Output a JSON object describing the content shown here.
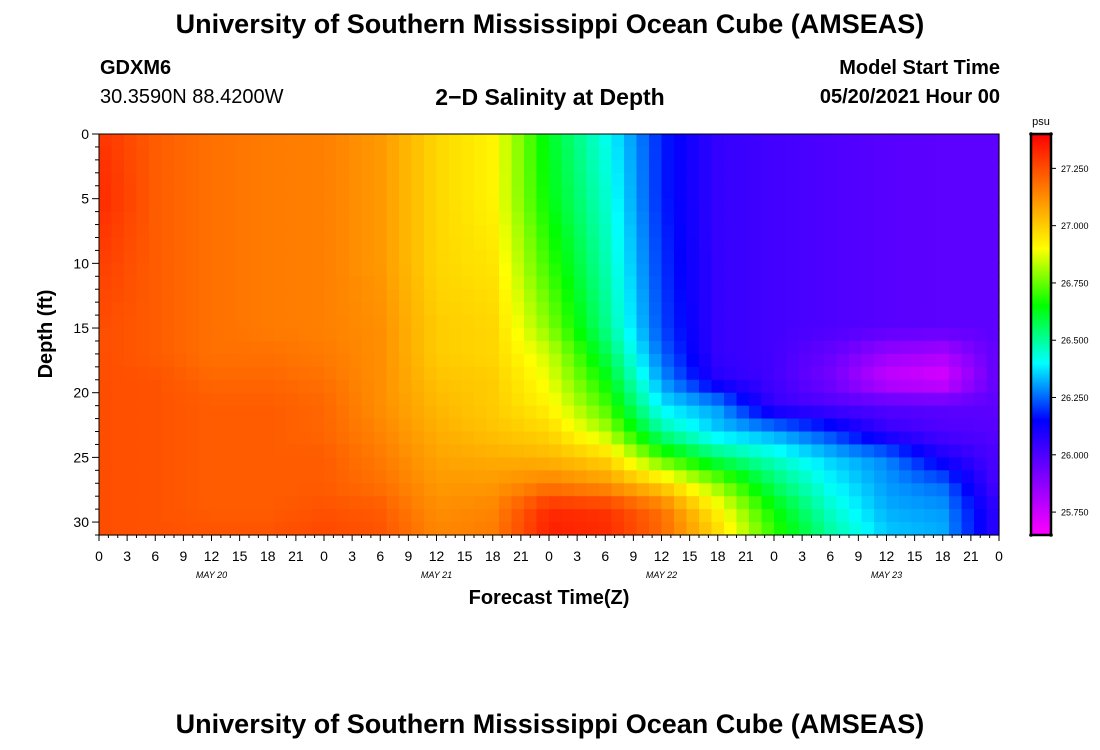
{
  "header": {
    "title": "University of Southern Mississippi Ocean Cube (AMSEAS)",
    "station": "GDXM6",
    "coords": "30.3590N  88.4200W",
    "subtitle": "2−D Salinity at Depth",
    "model_start_label": "Model Start Time",
    "model_start_value": "05/20/2021 Hour 00"
  },
  "footer": {
    "title": "University of Southern Mississippi Ocean Cube (AMSEAS)"
  },
  "chart_data": {
    "type": "heatmap",
    "title": "2-D Salinity at Depth",
    "xlabel": "Forecast Time(Z)",
    "ylabel": "Depth (ft)",
    "x_tick_labels": [
      "0",
      "3",
      "6",
      "9",
      "12",
      "15",
      "18",
      "21",
      "0",
      "3",
      "6",
      "9",
      "12",
      "15",
      "18",
      "21",
      "0",
      "3",
      "6",
      "9",
      "12",
      "15",
      "18",
      "21",
      "0",
      "3",
      "6",
      "9",
      "12",
      "15",
      "18",
      "21",
      "0"
    ],
    "day_labels": [
      "MAY 20",
      "MAY 21",
      "MAY 22",
      "MAY 23"
    ],
    "xlim_hours": [
      0,
      96
    ],
    "ylim": [
      0,
      31
    ],
    "y_ticks": [
      0,
      5,
      10,
      15,
      20,
      25,
      30
    ],
    "colorbar": {
      "unit": "psu",
      "range": [
        25.65,
        27.4
      ],
      "ticks": [
        27.25,
        27.0,
        26.75,
        26.5,
        26.25,
        26.0,
        25.75
      ],
      "tick_labels": [
        "27.250",
        "27.000",
        "26.750",
        "26.500",
        "26.250",
        "26.000",
        "25.750"
      ],
      "colors": [
        "#ff00ff",
        "#8000ff",
        "#0000ff",
        "#00ffff",
        "#00ff00",
        "#ffff00",
        "#ff8000",
        "#ff0000"
      ]
    },
    "grid": false,
    "depth_levels_ft": [
      0,
      5,
      10,
      15,
      17,
      19,
      21,
      23,
      25,
      27,
      29,
      31
    ],
    "time_hours": [
      0,
      6,
      12,
      18,
      24,
      30,
      36,
      42,
      48,
      54,
      60,
      66,
      72,
      78,
      84,
      90,
      96
    ],
    "salinity_psu": [
      [
        27.3,
        27.22,
        27.18,
        27.16,
        27.15,
        27.1,
        26.98,
        26.92,
        26.62,
        26.42,
        26.18,
        26.05,
        26.02,
        26.0,
        25.98,
        25.97,
        25.97
      ],
      [
        27.32,
        27.22,
        27.18,
        27.16,
        27.15,
        27.1,
        26.98,
        26.92,
        26.64,
        26.45,
        26.18,
        26.05,
        26.02,
        26.0,
        25.98,
        25.97,
        25.97
      ],
      [
        27.28,
        27.22,
        27.18,
        27.16,
        27.15,
        27.1,
        26.98,
        26.95,
        26.7,
        26.48,
        26.2,
        26.05,
        26.02,
        26.0,
        25.98,
        25.97,
        25.97
      ],
      [
        27.25,
        27.22,
        27.18,
        27.16,
        27.15,
        27.12,
        27.0,
        26.98,
        26.78,
        26.52,
        26.22,
        26.05,
        26.02,
        26.0,
        25.98,
        25.97,
        25.97
      ],
      [
        27.25,
        27.22,
        27.18,
        27.18,
        27.16,
        27.12,
        27.0,
        26.98,
        26.85,
        26.58,
        26.25,
        26.05,
        26.02,
        25.95,
        25.85,
        25.82,
        25.97
      ],
      [
        27.25,
        27.24,
        27.2,
        27.2,
        27.18,
        27.12,
        27.02,
        27.0,
        26.88,
        26.65,
        26.3,
        26.08,
        26.02,
        25.92,
        25.76,
        25.72,
        25.97
      ],
      [
        27.25,
        27.24,
        27.22,
        27.22,
        27.2,
        27.12,
        27.04,
        27.0,
        26.92,
        26.72,
        26.38,
        26.3,
        26.05,
        26.0,
        25.98,
        25.97,
        25.97
      ],
      [
        27.25,
        27.24,
        27.22,
        27.22,
        27.2,
        27.14,
        27.06,
        27.02,
        26.98,
        26.82,
        26.5,
        26.35,
        26.3,
        26.2,
        26.05,
        26.0,
        25.98
      ],
      [
        27.25,
        27.24,
        27.22,
        27.22,
        27.22,
        27.16,
        27.08,
        27.06,
        27.04,
        26.98,
        26.72,
        26.55,
        26.45,
        26.35,
        26.28,
        26.1,
        26.0
      ],
      [
        27.25,
        27.24,
        27.22,
        27.22,
        27.22,
        27.18,
        27.1,
        27.1,
        27.15,
        27.1,
        26.98,
        26.78,
        26.55,
        26.4,
        26.3,
        26.25,
        26.0
      ],
      [
        27.25,
        27.24,
        27.22,
        27.22,
        27.24,
        27.22,
        27.12,
        27.14,
        27.32,
        27.3,
        27.18,
        26.92,
        26.65,
        26.45,
        26.32,
        26.3,
        26.05
      ],
      [
        27.25,
        27.24,
        27.24,
        27.24,
        27.26,
        27.24,
        27.14,
        27.16,
        27.34,
        27.32,
        27.2,
        26.98,
        26.7,
        26.5,
        26.35,
        26.32,
        26.05
      ]
    ]
  }
}
